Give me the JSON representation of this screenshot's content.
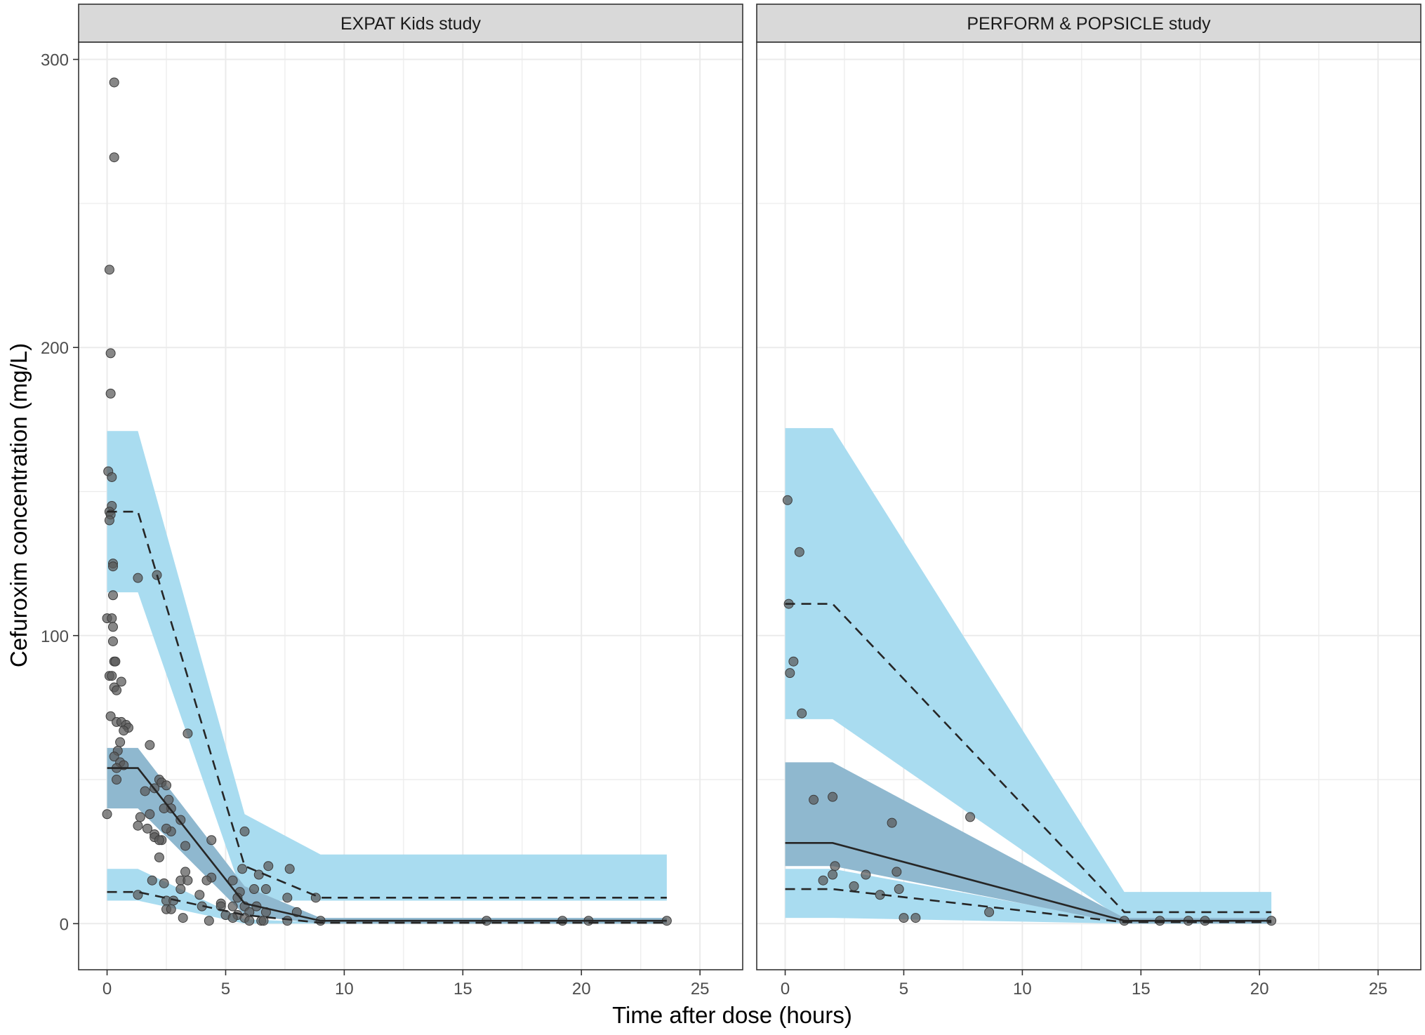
{
  "chart_data": {
    "type": "scatter",
    "xlabel": "Time after dose (hours)",
    "ylabel": "Cefuroxim concentration (mg/L)",
    "xlim": [
      -1.2,
      26.8
    ],
    "ylim": [
      -16,
      306
    ],
    "x_ticks": [
      0,
      5,
      10,
      15,
      20,
      25
    ],
    "y_ticks": [
      0,
      100,
      200,
      300
    ],
    "grid": true,
    "colors": {
      "band": "#a9dcf0",
      "band_median": "#8fb8cf",
      "points": "#595959",
      "lines": "#262626",
      "strip": "#d9d9d9",
      "grid": "#ebebeb"
    },
    "panels": [
      {
        "title": "EXPAT Kids study",
        "bands": {
          "upper": [
            [
              0,
              115,
              171
            ],
            [
              1.3,
              115,
              171
            ],
            [
              5.8,
              8,
              38
            ],
            [
              9,
              8,
              24
            ],
            [
              23.6,
              8,
              24
            ]
          ],
          "median": [
            [
              0,
              40,
              61
            ],
            [
              1.3,
              40,
              61
            ],
            [
              5.8,
              3,
              13
            ],
            [
              9,
              0,
              2
            ],
            [
              23.6,
              0,
              2
            ]
          ],
          "lower": [
            [
              0,
              8,
              19
            ],
            [
              1.3,
              8,
              19
            ],
            [
              5.8,
              0,
              1.5
            ],
            [
              9,
              0,
              0.5
            ],
            [
              23.6,
              0,
              0.5
            ]
          ]
        },
        "lines": {
          "upper_percentile": [
            [
              0,
              143
            ],
            [
              1.3,
              143
            ],
            [
              5.8,
              20
            ],
            [
              9,
              9
            ],
            [
              23.6,
              9
            ]
          ],
          "median": [
            [
              0,
              54
            ],
            [
              1.3,
              54
            ],
            [
              5.8,
              7
            ],
            [
              9,
              1
            ],
            [
              23.6,
              1
            ]
          ],
          "lower_percentile": [
            [
              0,
              11
            ],
            [
              1.3,
              11
            ],
            [
              5.8,
              3
            ],
            [
              9,
              0.3
            ],
            [
              23.6,
              0.3
            ]
          ]
        },
        "points": [
          [
            0.3,
            292
          ],
          [
            0.3,
            266
          ],
          [
            0.1,
            227
          ],
          [
            0.15,
            198
          ],
          [
            0.15,
            184
          ],
          [
            0.05,
            157
          ],
          [
            0.2,
            155
          ],
          [
            0.2,
            145
          ],
          [
            0.1,
            143
          ],
          [
            0.15,
            142
          ],
          [
            0.1,
            140
          ],
          [
            0.25,
            125
          ],
          [
            0.25,
            124
          ],
          [
            1.3,
            120
          ],
          [
            2.1,
            121
          ],
          [
            0.25,
            114
          ],
          [
            0,
            106
          ],
          [
            0.2,
            106
          ],
          [
            0.25,
            103
          ],
          [
            0.25,
            98
          ],
          [
            0.3,
            91
          ],
          [
            0.35,
            91
          ],
          [
            0.1,
            86
          ],
          [
            0.2,
            86
          ],
          [
            0.6,
            84
          ],
          [
            0.3,
            82
          ],
          [
            0.4,
            81
          ],
          [
            0.15,
            72
          ],
          [
            0.4,
            70
          ],
          [
            0.6,
            70
          ],
          [
            0.8,
            69
          ],
          [
            0.9,
            68
          ],
          [
            0.7,
            67
          ],
          [
            3.4,
            66
          ],
          [
            0.55,
            63
          ],
          [
            0.45,
            60
          ],
          [
            0.3,
            58
          ],
          [
            0.55,
            56
          ],
          [
            0.7,
            55
          ],
          [
            0.4,
            54
          ],
          [
            0.4,
            50
          ],
          [
            1.8,
            62
          ],
          [
            2.2,
            50
          ],
          [
            2.3,
            49
          ],
          [
            2.5,
            48
          ],
          [
            2.0,
            47
          ],
          [
            1.6,
            46
          ],
          [
            2.6,
            43
          ],
          [
            2.7,
            40
          ],
          [
            2.4,
            40
          ],
          [
            1.8,
            38
          ],
          [
            1.4,
            37
          ],
          [
            0,
            38
          ],
          [
            3.1,
            36
          ],
          [
            1.3,
            34
          ],
          [
            1.7,
            33
          ],
          [
            2.7,
            32
          ],
          [
            2.5,
            33
          ],
          [
            3.3,
            27
          ],
          [
            2.0,
            31
          ],
          [
            2.0,
            30
          ],
          [
            2.3,
            29
          ],
          [
            2.2,
            29
          ],
          [
            2.2,
            23
          ],
          [
            4.4,
            29
          ],
          [
            3.3,
            18
          ],
          [
            3.1,
            15
          ],
          [
            3.4,
            15
          ],
          [
            4.4,
            16
          ],
          [
            4.2,
            15
          ],
          [
            1.9,
            15
          ],
          [
            2.4,
            14
          ],
          [
            3.1,
            12
          ],
          [
            1.3,
            10
          ],
          [
            3.9,
            10
          ],
          [
            2.5,
            8
          ],
          [
            2.8,
            8
          ],
          [
            4.8,
            7
          ],
          [
            4.8,
            6
          ],
          [
            4.0,
            6
          ],
          [
            2.5,
            5
          ],
          [
            2.7,
            5
          ],
          [
            5.3,
            15
          ],
          [
            5.8,
            32
          ],
          [
            5.6,
            11
          ],
          [
            6.2,
            12
          ],
          [
            5.5,
            9
          ],
          [
            5.3,
            6
          ],
          [
            5.8,
            6
          ],
          [
            6.3,
            6
          ],
          [
            6.0,
            4
          ],
          [
            6.7,
            4
          ],
          [
            5.5,
            3
          ],
          [
            5.0,
            3
          ],
          [
            5.8,
            2
          ],
          [
            6.0,
            1
          ],
          [
            6.5,
            1
          ],
          [
            6.6,
            1
          ],
          [
            7.6,
            1
          ],
          [
            5.3,
            2
          ],
          [
            3.2,
            2
          ],
          [
            4.3,
            1
          ],
          [
            5.7,
            19
          ],
          [
            6.4,
            17
          ],
          [
            6.8,
            20
          ],
          [
            7.7,
            19
          ],
          [
            7.6,
            9
          ],
          [
            6.7,
            12
          ],
          [
            8.0,
            4
          ],
          [
            8.8,
            9
          ],
          [
            9,
            1
          ],
          [
            16,
            1
          ],
          [
            19.2,
            1
          ],
          [
            20.3,
            1
          ],
          [
            23.6,
            1
          ]
        ]
      },
      {
        "title": "PERFORM & POPSICLE study",
        "bands": {
          "upper": [
            [
              0,
              71,
              172
            ],
            [
              2,
              71,
              172
            ],
            [
              14.3,
              1,
              11
            ],
            [
              20.5,
              1,
              11
            ]
          ],
          "median": [
            [
              0,
              20,
              56
            ],
            [
              2,
              20,
              56
            ],
            [
              14.3,
              0,
              2
            ],
            [
              20.5,
              0,
              2
            ]
          ],
          "lower": [
            [
              0,
              2,
              19
            ],
            [
              2,
              2,
              19
            ],
            [
              14.3,
              0,
              0.5
            ],
            [
              20.5,
              0,
              0.5
            ]
          ]
        },
        "lines": {
          "upper_percentile": [
            [
              0,
              111
            ],
            [
              2,
              111
            ],
            [
              14.3,
              4
            ],
            [
              20.5,
              4
            ]
          ],
          "median": [
            [
              0,
              28
            ],
            [
              2,
              28
            ],
            [
              14.3,
              1
            ],
            [
              20.5,
              1
            ]
          ],
          "lower_percentile": [
            [
              0,
              12
            ],
            [
              2,
              12
            ],
            [
              14.3,
              0.5
            ],
            [
              20.5,
              0.5
            ]
          ]
        },
        "points": [
          [
            0.1,
            147
          ],
          [
            0.6,
            129
          ],
          [
            0.15,
            111
          ],
          [
            0.35,
            91
          ],
          [
            0.2,
            87
          ],
          [
            0.7,
            73
          ],
          [
            1.2,
            43
          ],
          [
            2.0,
            44
          ],
          [
            4.5,
            35
          ],
          [
            7.8,
            37
          ],
          [
            1.6,
            15
          ],
          [
            2.1,
            20
          ],
          [
            2.0,
            17
          ],
          [
            3.4,
            17
          ],
          [
            4.7,
            18
          ],
          [
            2.9,
            13
          ],
          [
            4.8,
            12
          ],
          [
            4.0,
            10
          ],
          [
            5.0,
            2
          ],
          [
            5.5,
            2
          ],
          [
            8.6,
            4
          ],
          [
            14.3,
            1
          ],
          [
            15.8,
            1
          ],
          [
            17,
            1
          ],
          [
            17.7,
            1
          ],
          [
            20.5,
            1
          ]
        ]
      }
    ]
  }
}
